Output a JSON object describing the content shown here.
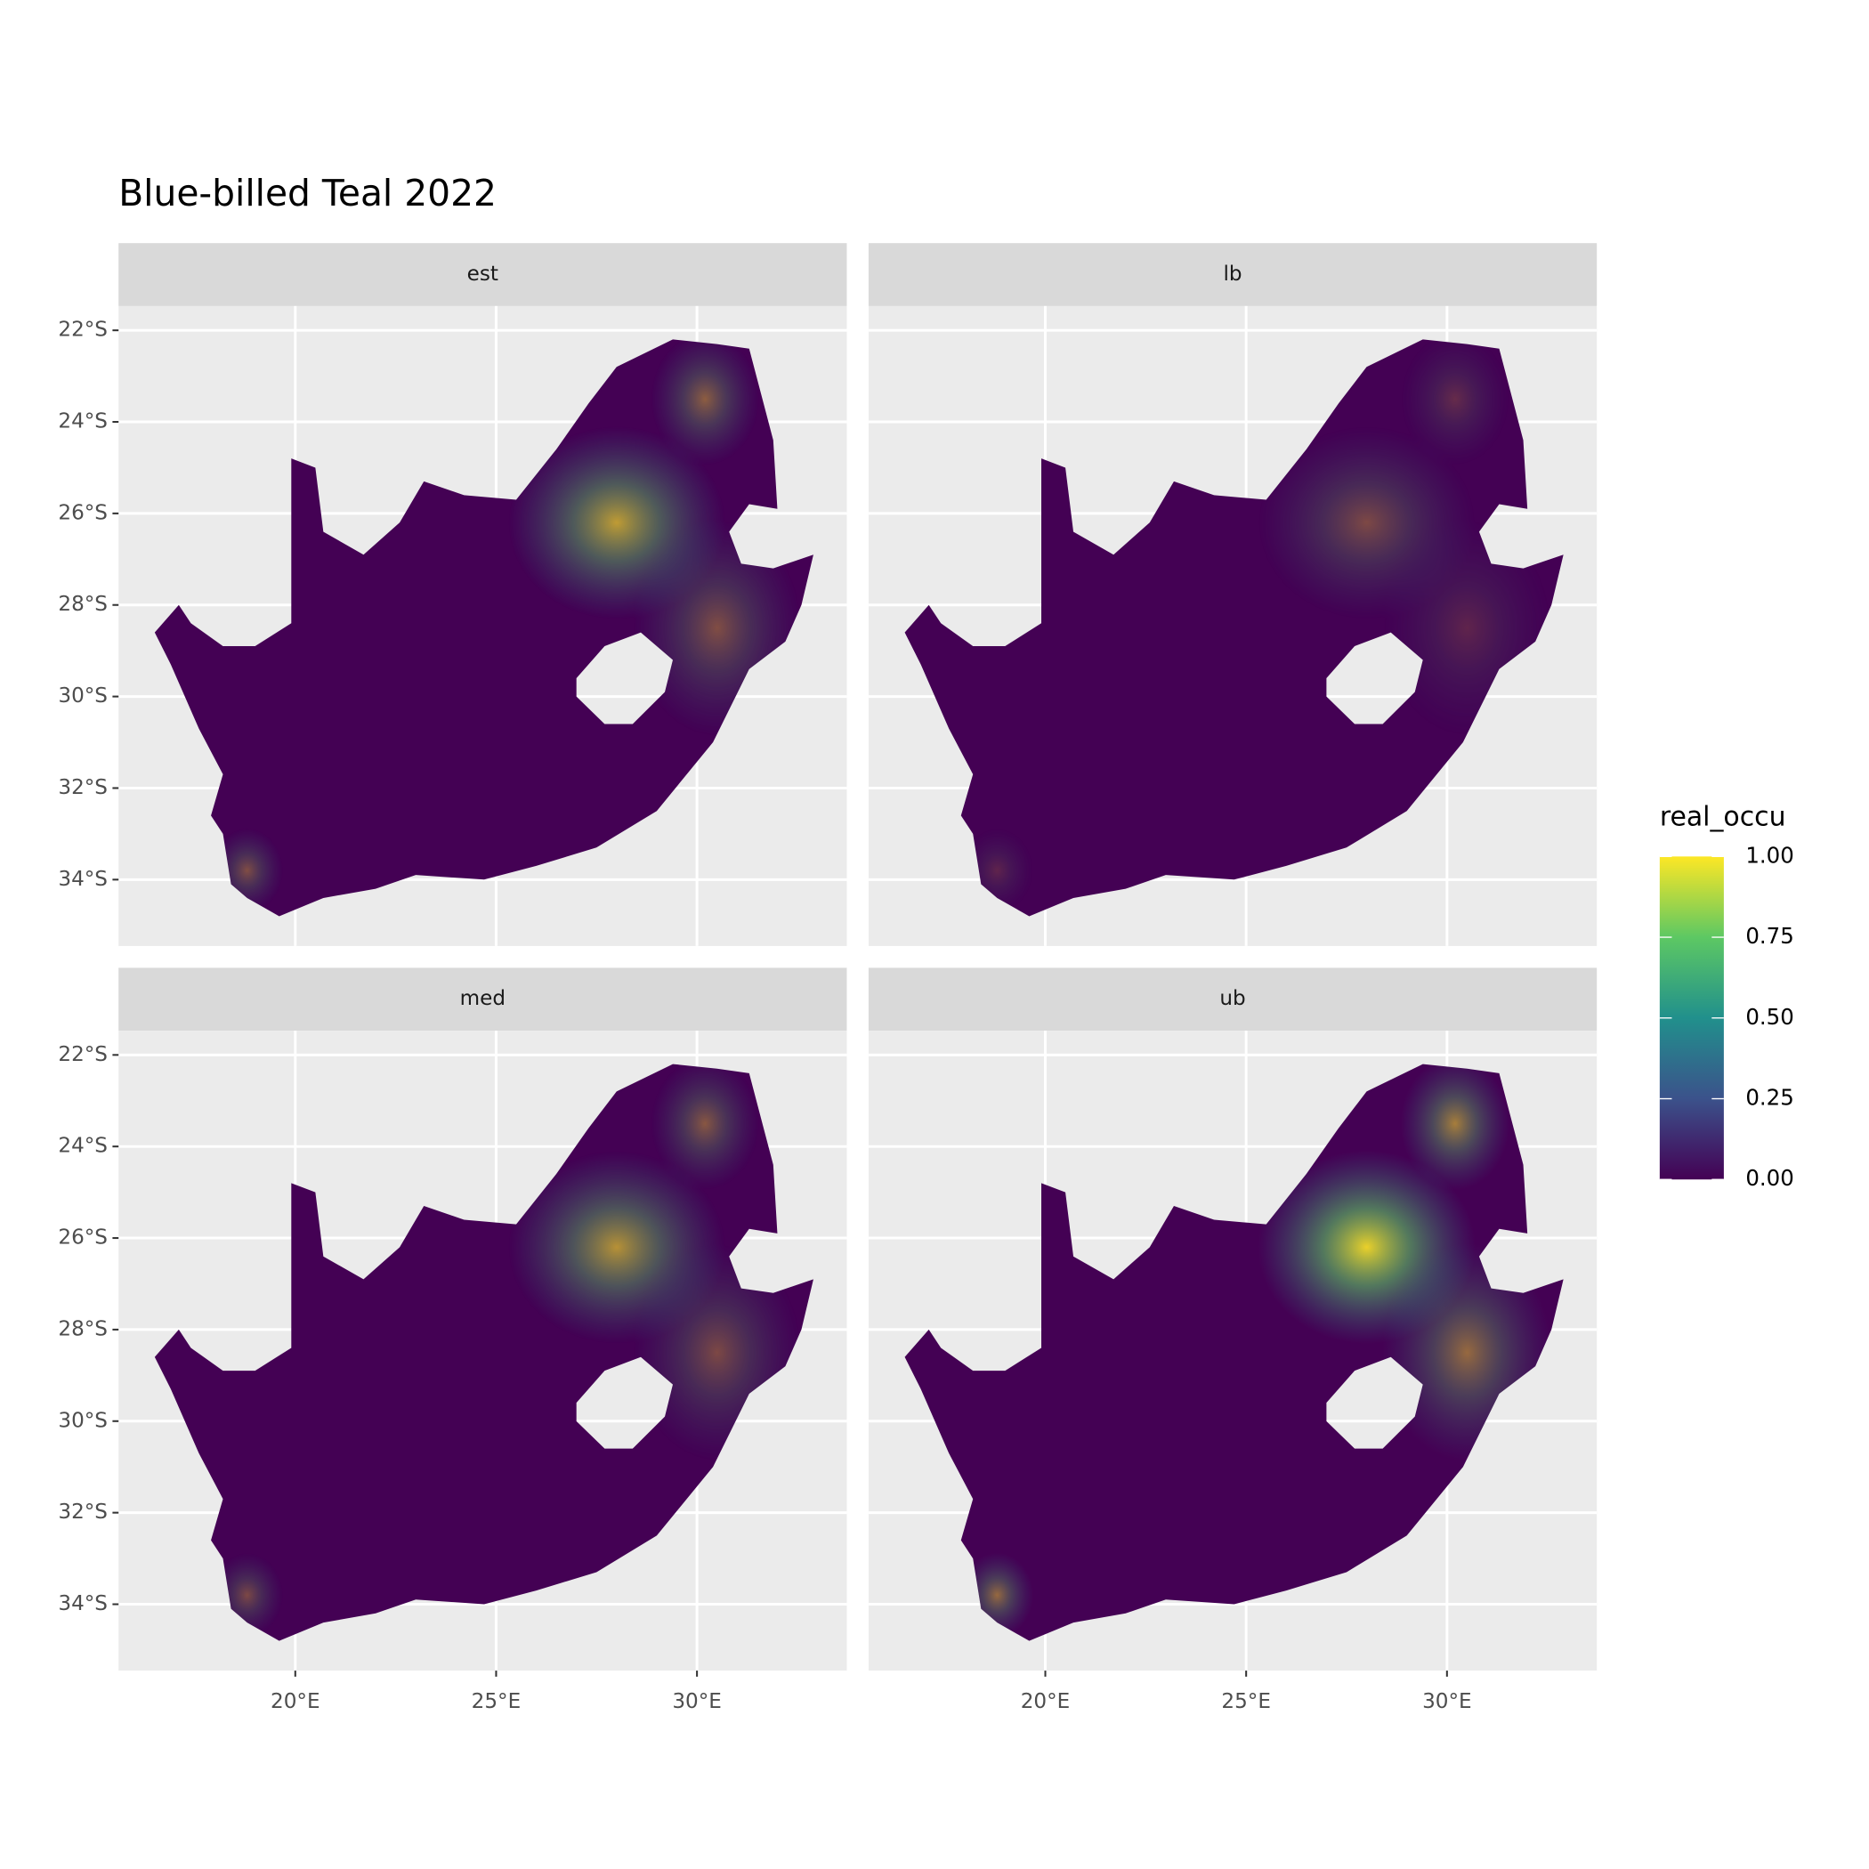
{
  "chart_data": {
    "type": "raster",
    "title": "Blue-billed Teal 2022",
    "facets": [
      "est",
      "lb",
      "med",
      "ub"
    ],
    "xlim": [
      15.6,
      33.73
    ],
    "ylim": [
      -35.45,
      -21.47
    ],
    "xticks": [
      {
        "value": 20,
        "label": "20°E"
      },
      {
        "value": 25,
        "label": "25°E"
      },
      {
        "value": 30,
        "label": "30°E"
      }
    ],
    "yticks": [
      {
        "value": -22,
        "label": "22°S"
      },
      {
        "value": -24,
        "label": "24°S"
      },
      {
        "value": -26,
        "label": "26°S"
      },
      {
        "value": -28,
        "label": "28°S"
      },
      {
        "value": -30,
        "label": "30°S"
      },
      {
        "value": -32,
        "label": "32°S"
      },
      {
        "value": -34,
        "label": "34°S"
      }
    ],
    "grid": true,
    "legend": {
      "title": "real_occu",
      "position": "right",
      "limits": [
        0,
        1
      ],
      "ticks": [
        {
          "value": 0,
          "label": "0.00"
        },
        {
          "value": 0.25,
          "label": "0.25"
        },
        {
          "value": 0.5,
          "label": "0.50"
        },
        {
          "value": 0.75,
          "label": "0.75"
        },
        {
          "value": 1,
          "label": "1.00"
        }
      ],
      "colors": [
        "#440154",
        "#3b528b",
        "#21908c",
        "#5dc863",
        "#fde725"
      ]
    }
  }
}
